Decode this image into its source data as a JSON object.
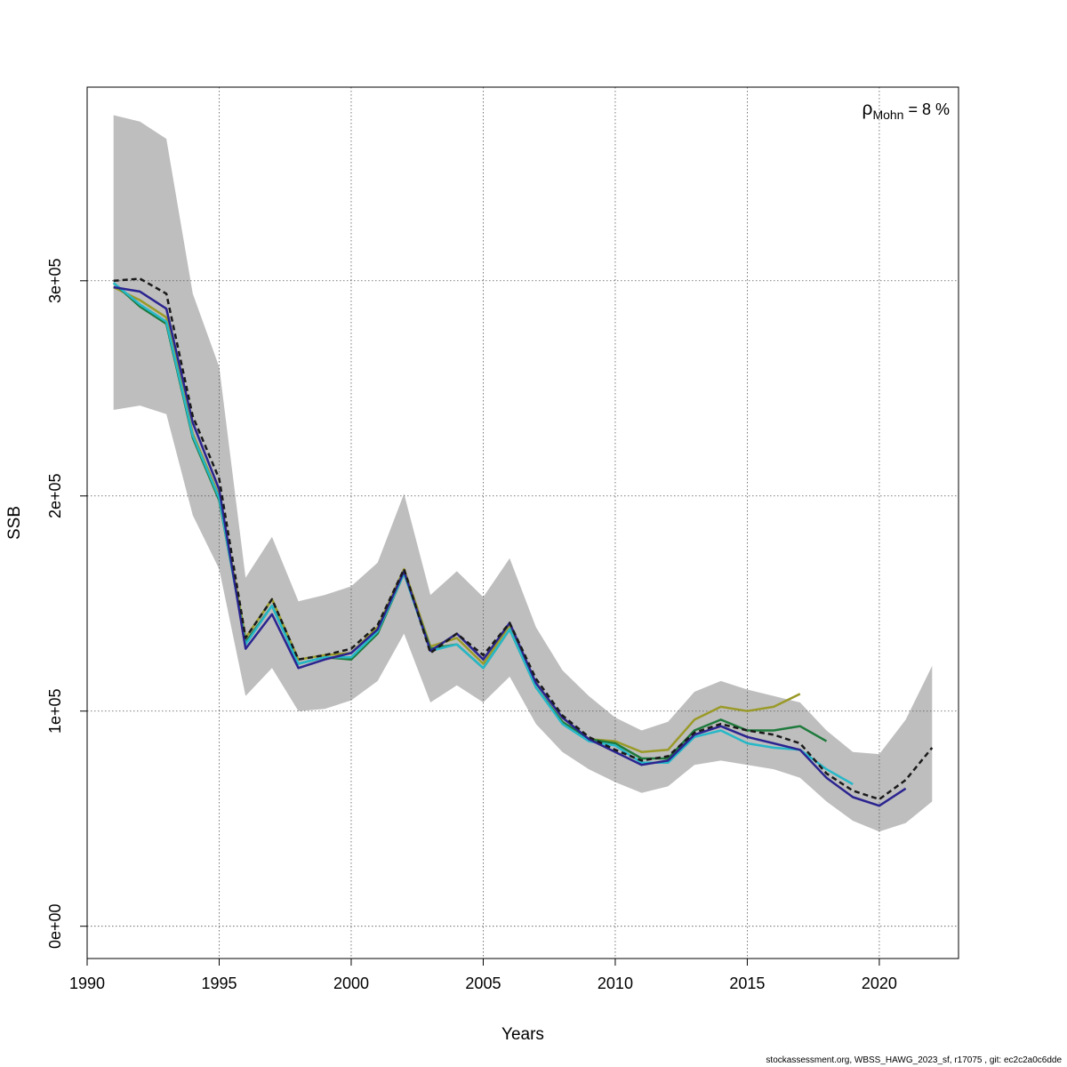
{
  "chart_data": {
    "type": "line",
    "title": "",
    "xlabel": "Years",
    "ylabel": "SSB",
    "xlim": [
      1990,
      2023
    ],
    "ylim": [
      -15000,
      390000
    ],
    "x_ticks": [
      1990,
      1995,
      2000,
      2005,
      2010,
      2015,
      2020
    ],
    "x_tick_labels": [
      "1990",
      "1995",
      "2000",
      "2005",
      "2010",
      "2015",
      "2020"
    ],
    "y_ticks": [
      0,
      100000,
      200000,
      300000
    ],
    "y_tick_labels": [
      "0e+00",
      "1e+05",
      "2e+05",
      "3e+05"
    ],
    "grid": true,
    "annotation": {
      "rho_symbol": "ρ",
      "rho_subscript": "Mohn",
      "rho_value": " = 8 %",
      "placement": "top-right"
    },
    "confidence_band": {
      "color": "#bebebe",
      "x": [
        1991,
        1992,
        1993,
        1994,
        1995,
        1996,
        1997,
        1998,
        1999,
        2000,
        2001,
        2002,
        2003,
        2004,
        2005,
        2006,
        2007,
        2008,
        2009,
        2010,
        2011,
        2012,
        2013,
        2014,
        2015,
        2016,
        2017,
        2018,
        2019,
        2020,
        2021,
        2022
      ],
      "upper": [
        377000,
        374000,
        366000,
        294000,
        260000,
        162000,
        181000,
        151000,
        154000,
        158000,
        169000,
        201000,
        154000,
        165000,
        153000,
        171000,
        139000,
        119000,
        107000,
        97000,
        91000,
        95000,
        109000,
        114000,
        110000,
        107000,
        104000,
        91000,
        81000,
        80000,
        96000,
        121000
      ],
      "lower": [
        240000,
        242000,
        238000,
        191000,
        166000,
        107000,
        120000,
        100000,
        101000,
        105000,
        114000,
        136000,
        104000,
        112000,
        104000,
        116000,
        94000,
        81000,
        73000,
        67000,
        62000,
        65000,
        75000,
        77000,
        75000,
        73000,
        69000,
        58000,
        49000,
        44000,
        48000,
        58000
      ]
    },
    "series": [
      {
        "color": "#9a9a28",
        "style": "solid",
        "x": [
          1991,
          1992,
          1993,
          1994,
          1995,
          1996,
          1997,
          1998,
          1999,
          2000,
          2001,
          2002,
          2003,
          2004,
          2005,
          2006,
          2007,
          2008,
          2009,
          2010,
          2011,
          2012,
          2013,
          2014,
          2015,
          2016,
          2017
        ],
        "values": [
          297000,
          291000,
          283000,
          229000,
          200000,
          134000,
          152000,
          124000,
          126000,
          127000,
          139000,
          166000,
          130000,
          134000,
          122000,
          140000,
          113000,
          97000,
          87000,
          86000,
          81000,
          82000,
          96000,
          102000,
          100000,
          102000,
          108000
        ]
      },
      {
        "color": "#1e7a3c",
        "style": "solid",
        "x": [
          1991,
          1992,
          1993,
          1994,
          1995,
          1996,
          1997,
          1998,
          1999,
          2000,
          2001,
          2002,
          2003,
          2004,
          2005,
          2006,
          2007,
          2008,
          2009,
          2010,
          2011,
          2012,
          2013,
          2014,
          2015,
          2016,
          2017,
          2018
        ],
        "values": [
          299000,
          288000,
          280000,
          227000,
          198000,
          132000,
          149000,
          122000,
          125000,
          124000,
          136000,
          164000,
          129000,
          131000,
          120000,
          138000,
          111000,
          95000,
          87000,
          85000,
          78000,
          78000,
          91000,
          96000,
          91000,
          91000,
          93000,
          86000
        ]
      },
      {
        "color": "#26b8c8",
        "style": "solid",
        "x": [
          1991,
          1992,
          1993,
          1994,
          1995,
          1996,
          1997,
          1998,
          1999,
          2000,
          2001,
          2002,
          2003,
          2004,
          2005,
          2006,
          2007,
          2008,
          2009,
          2010,
          2011,
          2012,
          2013,
          2014,
          2015,
          2016,
          2017,
          2018,
          2019
        ],
        "values": [
          299000,
          289000,
          281000,
          228000,
          199000,
          131000,
          149000,
          122000,
          125000,
          125000,
          137000,
          164000,
          128000,
          131000,
          120000,
          138000,
          111000,
          94000,
          86000,
          84000,
          76000,
          76000,
          88000,
          91000,
          85000,
          83000,
          82000,
          73000,
          66000
        ]
      },
      {
        "color": "#2b2490",
        "style": "solid",
        "x": [
          1991,
          1992,
          1993,
          1994,
          1995,
          1996,
          1997,
          1998,
          1999,
          2000,
          2001,
          2002,
          2003,
          2004,
          2005,
          2006,
          2007,
          2008,
          2009,
          2010,
          2011,
          2012,
          2013,
          2014,
          2015,
          2016,
          2017,
          2018,
          2019,
          2020,
          2021
        ],
        "values": [
          297000,
          295000,
          287000,
          234000,
          203000,
          129000,
          145000,
          120000,
          124000,
          127000,
          138000,
          165000,
          128000,
          136000,
          124000,
          141000,
          113000,
          97000,
          87000,
          81000,
          75000,
          77000,
          89000,
          93000,
          88000,
          85000,
          82000,
          69000,
          60000,
          56000,
          64000
        ]
      },
      {
        "color": "#1a1a1a",
        "style": "dashed",
        "x": [
          1991,
          1992,
          1993,
          1994,
          1995,
          1996,
          1997,
          1998,
          1999,
          2000,
          2001,
          2002,
          2003,
          2004,
          2005,
          2006,
          2007,
          2008,
          2009,
          2010,
          2011,
          2012,
          2013,
          2014,
          2015,
          2016,
          2017,
          2018,
          2019,
          2020,
          2021,
          2022
        ],
        "values": [
          300000,
          301000,
          294000,
          237000,
          208000,
          134000,
          152000,
          124000,
          126000,
          129000,
          140000,
          166000,
          127000,
          136000,
          126000,
          141000,
          115000,
          98000,
          88000,
          82000,
          77000,
          79000,
          90000,
          94000,
          91000,
          89000,
          85000,
          71000,
          63000,
          59000,
          68000,
          83000
        ]
      }
    ]
  },
  "footer": "stockassessment.org, WBSS_HAWG_2023_sf, r17075 , git: ec2c2a0c6dde"
}
